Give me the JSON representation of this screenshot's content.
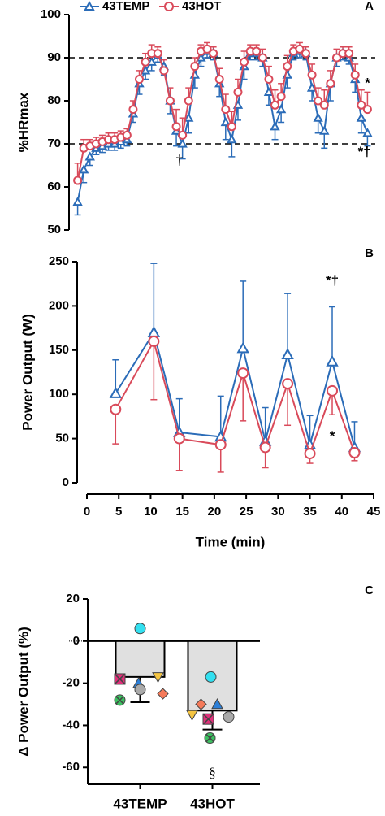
{
  "chart_data": [
    {
      "type": "line",
      "panel_label": "A",
      "y_label": "%HRmax",
      "x": [
        1,
        2,
        3,
        4,
        5,
        6,
        7,
        8,
        9,
        10,
        11,
        12,
        13,
        14,
        15,
        16,
        17,
        18,
        19,
        20,
        21,
        22,
        23,
        24,
        25,
        26,
        27,
        28,
        29,
        30,
        31,
        32,
        33,
        34,
        35,
        36,
        37,
        38,
        39,
        40,
        41,
        42,
        43,
        44,
        45,
        46,
        47,
        48
      ],
      "series": [
        {
          "name": "43TEMP",
          "color": "#2b6cb8",
          "marker": "triangle",
          "error_direction": "down",
          "values": [
            56.5,
            64,
            67,
            69,
            69.5,
            70,
            70,
            70.5,
            71,
            77,
            84,
            87,
            89,
            90.5,
            88,
            80,
            73,
            70,
            76,
            86,
            90,
            91.5,
            91,
            84,
            75,
            71,
            79,
            88,
            91,
            91,
            90,
            82,
            74,
            78,
            86,
            91,
            91.5,
            91,
            83,
            76,
            73,
            84,
            90,
            91,
            90,
            85,
            76,
            72.5
          ],
          "errors": [
            3,
            3,
            2,
            1.5,
            1.5,
            1.5,
            1.5,
            1.5,
            1.5,
            2,
            2.5,
            2,
            2,
            1.5,
            2,
            3,
            3.5,
            3.5,
            3.5,
            3,
            2,
            1.5,
            1.5,
            3,
            4,
            4,
            3.5,
            3,
            1.5,
            1.5,
            2,
            3,
            3,
            3,
            3,
            1.5,
            1.5,
            1.5,
            3,
            3.5,
            4,
            4,
            2,
            1.5,
            1.5,
            3,
            3.5,
            3
          ]
        },
        {
          "name": "43HOT",
          "color": "#d94a5a",
          "marker": "circle",
          "error_direction": "up",
          "values": [
            61.5,
            69,
            69.5,
            70,
            70.5,
            71,
            71,
            71.5,
            72,
            78,
            85,
            89,
            91,
            91,
            87,
            80,
            74,
            72,
            80,
            88,
            91.5,
            92,
            91,
            85,
            78,
            74,
            82,
            89,
            91.5,
            91.5,
            90,
            85,
            79,
            81,
            88,
            91.5,
            92,
            91,
            86,
            80,
            79,
            84,
            90,
            91,
            91,
            86,
            79,
            78
          ],
          "errors": [
            4,
            2,
            1.5,
            1.5,
            1.5,
            1.5,
            1.5,
            1.5,
            1.5,
            2,
            2,
            2,
            2,
            1.5,
            2.5,
            3,
            4,
            4,
            3,
            2,
            1.5,
            1.5,
            1.5,
            2.5,
            3.5,
            3.5,
            3,
            2.5,
            1.5,
            1.5,
            2,
            3,
            3.5,
            3,
            2.5,
            1.5,
            1.5,
            1.5,
            2.5,
            3,
            3.5,
            3,
            2,
            1.5,
            1.5,
            2.5,
            3.5,
            4
          ]
        }
      ],
      "xlim": [
        0,
        49
      ],
      "ylim": [
        50,
        100
      ],
      "yticks": [
        50,
        60,
        70,
        80,
        90,
        100
      ],
      "hlines": [
        70,
        90
      ],
      "legend": "top",
      "annotations": [
        {
          "text": "*",
          "x": 48,
          "y": 84
        },
        {
          "text": "*†",
          "x": 47.5,
          "y": 68
        },
        {
          "text": "†",
          "x": 17.5,
          "y": 66
        }
      ]
    },
    {
      "type": "line",
      "panel_label": "B",
      "y_label": "Power Output (W)",
      "x_label": "Time (min)",
      "x": [
        4.5,
        10.5,
        14.5,
        21,
        24.5,
        28,
        31.5,
        35,
        38.5,
        42
      ],
      "series": [
        {
          "name": "43TEMP",
          "color": "#2b6cb8",
          "marker": "triangle",
          "error_direction": "up",
          "values": [
            101,
            170,
            57,
            52,
            152,
            47,
            145,
            43,
            137,
            40
          ],
          "errors": [
            38,
            78,
            38,
            46,
            76,
            38,
            69,
            33,
            62,
            29
          ]
        },
        {
          "name": "43HOT",
          "color": "#d94a5a",
          "marker": "circle",
          "error_direction": "down",
          "values": [
            83,
            160,
            50,
            43,
            124,
            40,
            112,
            33,
            104,
            34
          ],
          "errors": [
            39,
            66,
            36,
            31,
            54,
            23,
            47,
            11,
            27,
            9
          ]
        }
      ],
      "xlim": [
        0,
        45
      ],
      "xticks": [
        0,
        5,
        10,
        15,
        20,
        25,
        30,
        35,
        40,
        45
      ],
      "ylim": [
        0,
        250
      ],
      "yticks": [
        0,
        50,
        100,
        150,
        200,
        250
      ],
      "annotations": [
        {
          "text": "*†",
          "x": 38.5,
          "y": 228
        },
        {
          "text": "*",
          "x": 38.5,
          "y": 52
        }
      ]
    },
    {
      "type": "bar",
      "panel_label": "C",
      "y_label": "Δ Power Output (%)",
      "categories": [
        "43TEMP",
        "43HOT"
      ],
      "values": [
        -17,
        -33
      ],
      "errors": [
        12,
        9
      ],
      "color": "#e0e0e0",
      "points": [
        {
          "color": "#33e0f0",
          "marker": "circle",
          "values": [
            6,
            -17
          ]
        },
        {
          "color": "#e0307a",
          "marker": "square-x",
          "values": [
            -18,
            -37
          ]
        },
        {
          "color": "#2b7fd8",
          "marker": "triangle",
          "values": [
            -20,
            -30
          ]
        },
        {
          "color": "#f5c542",
          "marker": "triangle-down",
          "values": [
            -17,
            -35
          ]
        },
        {
          "color": "#aaaaaa",
          "marker": "circle",
          "values": [
            -23,
            -36
          ]
        },
        {
          "color": "#f47a5a",
          "marker": "diamond",
          "values": [
            -25,
            -30
          ]
        },
        {
          "color": "#3cc060",
          "marker": "circle-x",
          "values": [
            -28,
            -46
          ]
        }
      ],
      "ylim": [
        -68,
        20
      ],
      "yticks": [
        -60,
        -40,
        -20,
        0,
        20
      ],
      "annotations": [
        {
          "text": "§",
          "x": 1,
          "y": -63
        }
      ]
    }
  ]
}
